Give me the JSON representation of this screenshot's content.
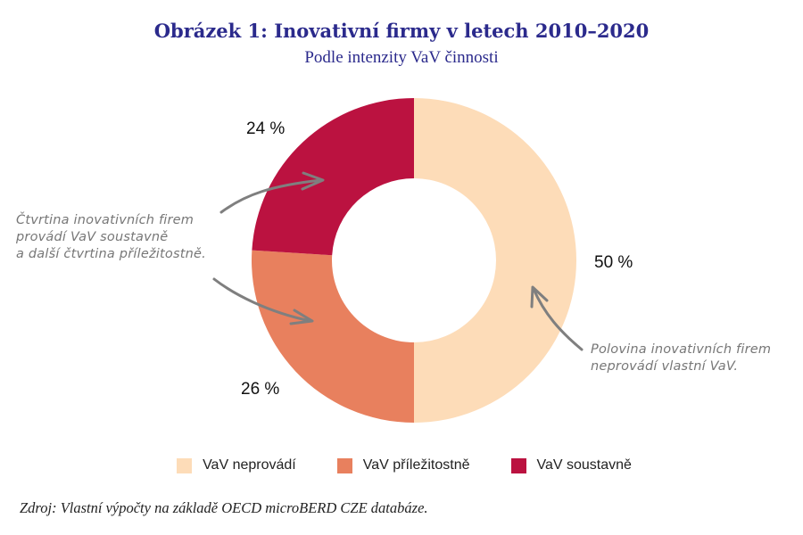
{
  "chart_data": {
    "type": "pie",
    "variant": "donut",
    "title": "Obrázek 1: Inovativní firmy v letech 2010–2020",
    "subtitle": "Podle intenzity VaV činnosti",
    "unit": "%",
    "start_angle": "top",
    "direction": "clockwise",
    "slices": [
      {
        "name": "VaV neprovádí",
        "value": 50,
        "label": "50 %",
        "color": "#fddcb8"
      },
      {
        "name": "VaV příležitostně",
        "value": 26,
        "label": "26 %",
        "color": "#e8805e"
      },
      {
        "name": "VaV soustavně",
        "value": 24,
        "label": "24 %",
        "color": "#bb1240"
      }
    ],
    "legend": {
      "placement": "bottom",
      "entries": [
        "VaV neprovádí",
        "VaV příležitostně",
        "VaV soustavně"
      ]
    },
    "annotations": [
      {
        "text_lines": [
          "Čtvrtina inovativních firem",
          "provádí VaV soustavně",
          "a další čtvrtina příležitostně."
        ],
        "points_to": [
          "VaV soustavně",
          "VaV příležitostně"
        ]
      },
      {
        "text_lines": [
          "Polovina inovativních firem",
          "neprovádí vlastní VaV."
        ],
        "points_to": [
          "VaV neprovádí"
        ]
      }
    ]
  },
  "source": "Zdroj: Vlastní výpočty na základě OECD microBERD CZE databáze.",
  "colors": {
    "title": "#2b2a8c",
    "annotation": "#777777",
    "arrow": "#7f7f7f"
  }
}
